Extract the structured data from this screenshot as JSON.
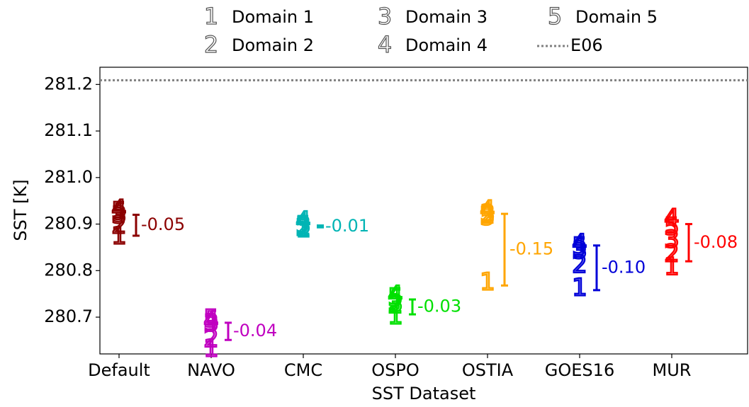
{
  "chart_data": {
    "type": "scatter",
    "x_label": "SST Dataset",
    "y_label": "SST [K]",
    "categories": [
      "Default",
      "NAVO",
      "CMC",
      "OSPO",
      "OSTIA",
      "GOES16",
      "MUR"
    ],
    "category_colors": [
      "#8b0000",
      "#c000c0",
      "#00b4b4",
      "#00e000",
      "#ffa500",
      "#0000d8",
      "#ff0000"
    ],
    "series": [
      {
        "name": "Domain 1",
        "marker": "1",
        "values": [
          280.872,
          280.63,
          280.887,
          280.7,
          280.773,
          280.761,
          280.806
        ]
      },
      {
        "name": "Domain 2",
        "marker": "2",
        "values": [
          280.895,
          280.651,
          280.89,
          280.724,
          280.917,
          280.81,
          280.834
        ]
      },
      {
        "name": "Domain 3",
        "marker": "3",
        "values": [
          280.917,
          280.685,
          280.895,
          280.727,
          280.92,
          280.841,
          280.864
        ]
      },
      {
        "name": "Domain 4",
        "marker": "4",
        "values": [
          280.93,
          280.69,
          280.905,
          280.745,
          280.928,
          280.856,
          280.91
        ]
      },
      {
        "name": "Domain 5",
        "marker": "5",
        "values": [
          280.925,
          280.694,
          280.895,
          280.74,
          280.913,
          280.849,
          280.892
        ]
      }
    ],
    "spread": {
      "low": [
        280.875,
        280.651,
        280.893,
        280.706,
        280.768,
        280.758,
        280.82
      ],
      "high": [
        280.92,
        280.688,
        280.897,
        280.738,
        280.922,
        280.854,
        280.9
      ],
      "values": [
        -0.05,
        -0.04,
        -0.01,
        -0.03,
        -0.15,
        -0.1,
        -0.08
      ],
      "value_labels": [
        "-0.05",
        "-0.04",
        "-0.01",
        "-0.03",
        "-0.15",
        "-0.10",
        "-0.08"
      ]
    },
    "reference_line": {
      "name": "E06",
      "value": 281.209,
      "color": "#808080"
    },
    "ylim": [
      280.621,
      281.237
    ],
    "yticks": [
      280.7,
      280.8,
      280.9,
      {
        "value": 281.0,
        "label": "281.0"
      },
      281.1,
      281.2
    ],
    "legend": "top"
  }
}
